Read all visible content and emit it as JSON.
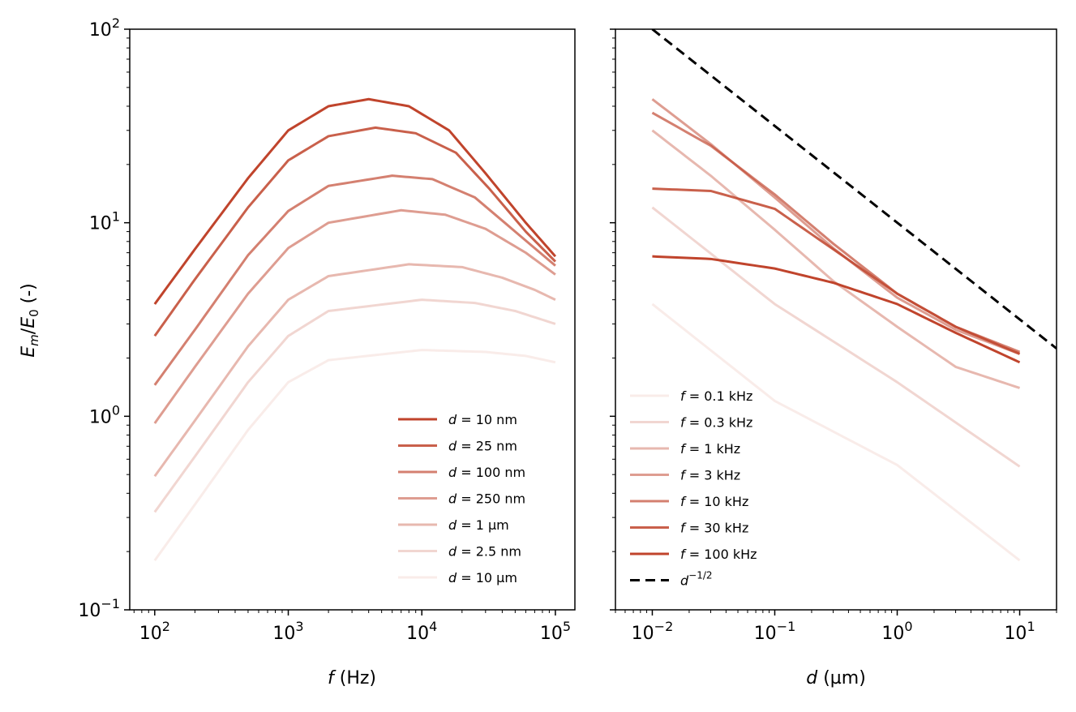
{
  "chart_data": [
    {
      "type": "line",
      "panel": "left",
      "xlabel": {
        "var": "f",
        "unit": "(Hz)"
      },
      "ylabel": {
        "text": "E_m/E_0 (-)"
      },
      "xscale": "log",
      "yscale": "log",
      "xlim": [
        65,
        140000
      ],
      "ylim": [
        0.1,
        100
      ],
      "xticks": [
        {
          "base": "10",
          "exp": "2",
          "value": 100
        },
        {
          "base": "10",
          "exp": "3",
          "value": 1000
        },
        {
          "base": "10",
          "exp": "4",
          "value": 10000
        },
        {
          "base": "10",
          "exp": "5",
          "value": 100000
        }
      ],
      "yticks": [
        {
          "base": "10",
          "exp": "−1",
          "value": 0.1
        },
        {
          "base": "10",
          "exp": "0",
          "value": 1
        },
        {
          "base": "10",
          "exp": "1",
          "value": 10
        },
        {
          "base": "10",
          "exp": "2",
          "value": 100
        }
      ],
      "legend_position": "lower-right",
      "series": [
        {
          "name": "10 nm",
          "label_var": "d",
          "label_value": "10 nm",
          "color": "#c0442c",
          "alpha": 1.0,
          "x": [
            100,
            200,
            500,
            1000,
            2000,
            4000,
            8000,
            16000,
            30000,
            60000,
            100000
          ],
          "y": [
            3.8,
            7.3,
            17.0,
            30.0,
            40.0,
            43.5,
            40.0,
            30.0,
            18.0,
            10.0,
            6.7
          ]
        },
        {
          "name": "25 nm",
          "label_var": "d",
          "label_value": "25 nm",
          "color": "#c0442c",
          "alpha": 0.85,
          "x": [
            100,
            200,
            500,
            1000,
            2000,
            4500,
            9000,
            18000,
            32000,
            60000,
            100000
          ],
          "y": [
            2.6,
            5.1,
            12.0,
            21.0,
            28.0,
            31.0,
            29.0,
            23.0,
            15.0,
            9.0,
            6.3
          ]
        },
        {
          "name": "100 nm",
          "label_var": "d",
          "label_value": "100 nm",
          "color": "#c0442c",
          "alpha": 0.68,
          "x": [
            100,
            200,
            500,
            1000,
            2000,
            6000,
            12000,
            25000,
            50000,
            100000
          ],
          "y": [
            1.45,
            2.8,
            6.8,
            11.5,
            15.5,
            17.5,
            16.8,
            13.5,
            9.0,
            6.0
          ]
        },
        {
          "name": "250 nm",
          "label_var": "d",
          "label_value": "250 nm",
          "color": "#c0442c",
          "alpha": 0.52,
          "x": [
            100,
            200,
            500,
            1000,
            2000,
            7000,
            15000,
            30000,
            60000,
            100000
          ],
          "y": [
            0.92,
            1.8,
            4.3,
            7.4,
            10.0,
            11.6,
            11.0,
            9.3,
            7.0,
            5.4
          ]
        },
        {
          "name": "1 µm",
          "label_var": "d",
          "label_value": "1 µm",
          "color": "#c0442c",
          "alpha": 0.38,
          "x": [
            100,
            200,
            500,
            1000,
            2000,
            8000,
            20000,
            40000,
            70000,
            100000
          ],
          "y": [
            0.49,
            0.95,
            2.3,
            4.0,
            5.3,
            6.1,
            5.9,
            5.2,
            4.5,
            4.0
          ]
        },
        {
          "name": "2.5 nm",
          "label_var": "d",
          "label_value": "2.5 nm",
          "color": "#c0442c",
          "alpha": 0.22,
          "x": [
            100,
            200,
            500,
            1000,
            2000,
            10000,
            25000,
            50000,
            100000
          ],
          "y": [
            0.32,
            0.62,
            1.5,
            2.6,
            3.5,
            4.0,
            3.85,
            3.5,
            3.0
          ]
        },
        {
          "name": "10 µm",
          "label_var": "d",
          "label_value": "10 µm",
          "color": "#c0442c",
          "alpha": 0.1,
          "x": [
            100,
            200,
            500,
            1000,
            2000,
            10000,
            30000,
            60000,
            100000
          ],
          "y": [
            0.18,
            0.35,
            0.85,
            1.5,
            1.95,
            2.2,
            2.15,
            2.05,
            1.9
          ]
        }
      ]
    },
    {
      "type": "line",
      "panel": "right",
      "xlabel": {
        "var": "d",
        "unit": "(µm)"
      },
      "xscale": "log",
      "yscale": "log",
      "xlim": [
        0.005,
        20
      ],
      "ylim": [
        0.1,
        100
      ],
      "xticks": [
        {
          "base": "10",
          "exp": "−2",
          "value": 0.01
        },
        {
          "base": "10",
          "exp": "−1",
          "value": 0.1
        },
        {
          "base": "10",
          "exp": "0",
          "value": 1
        },
        {
          "base": "10",
          "exp": "1",
          "value": 10
        }
      ],
      "legend_position": "lower-left",
      "series": [
        {
          "name": "0.1 kHz",
          "label_var": "f",
          "label_value": "0.1 kHz",
          "color": "#c0442c",
          "alpha": 0.1,
          "x": [
            0.01,
            0.1,
            1,
            10
          ],
          "y": [
            3.8,
            1.2,
            0.56,
            0.18
          ]
        },
        {
          "name": "0.3 kHz",
          "label_var": "f",
          "label_value": "0.3 kHz",
          "color": "#c0442c",
          "alpha": 0.22,
          "x": [
            0.01,
            0.1,
            1,
            10
          ],
          "y": [
            12.0,
            3.8,
            1.5,
            0.55
          ]
        },
        {
          "name": "1 kHz",
          "label_var": "f",
          "label_value": "1 kHz",
          "color": "#c0442c",
          "alpha": 0.38,
          "x": [
            0.01,
            0.03,
            0.1,
            0.3,
            1,
            3,
            10
          ],
          "y": [
            30.0,
            17.5,
            9.2,
            5.0,
            2.9,
            1.8,
            1.4
          ]
        },
        {
          "name": "3 kHz",
          "label_var": "f",
          "label_value": "3 kHz",
          "color": "#c0442c",
          "alpha": 0.52,
          "x": [
            0.01,
            0.03,
            0.1,
            0.3,
            1,
            3,
            10
          ],
          "y": [
            43.5,
            25.5,
            13.5,
            7.4,
            4.1,
            2.8,
            2.1
          ]
        },
        {
          "name": "10 kHz",
          "label_var": "f",
          "label_value": "10 kHz",
          "color": "#c0442c",
          "alpha": 0.68,
          "x": [
            0.01,
            0.03,
            0.1,
            0.3,
            1,
            3,
            10
          ],
          "y": [
            37.0,
            25.0,
            14.0,
            7.8,
            4.3,
            2.9,
            2.15
          ]
        },
        {
          "name": "30 kHz",
          "label_var": "f",
          "label_value": "30 kHz",
          "color": "#c0442c",
          "alpha": 0.85,
          "x": [
            0.01,
            0.03,
            0.1,
            0.3,
            1,
            3,
            10
          ],
          "y": [
            15.0,
            14.6,
            11.8,
            7.3,
            4.3,
            2.9,
            2.1
          ]
        },
        {
          "name": "100 kHz",
          "label_var": "f",
          "label_value": "100 kHz",
          "color": "#c0442c",
          "alpha": 1.0,
          "x": [
            0.01,
            0.03,
            0.1,
            0.3,
            1,
            3,
            10
          ],
          "y": [
            6.7,
            6.5,
            5.8,
            4.9,
            3.8,
            2.7,
            1.9
          ]
        },
        {
          "name": "d^-1/2",
          "label_var": "d",
          "label_value": "−1/2",
          "color": "#000000",
          "alpha": 1.0,
          "dashed": true,
          "x": [
            0.01,
            20
          ],
          "y": [
            100,
            2.24
          ]
        }
      ]
    }
  ]
}
